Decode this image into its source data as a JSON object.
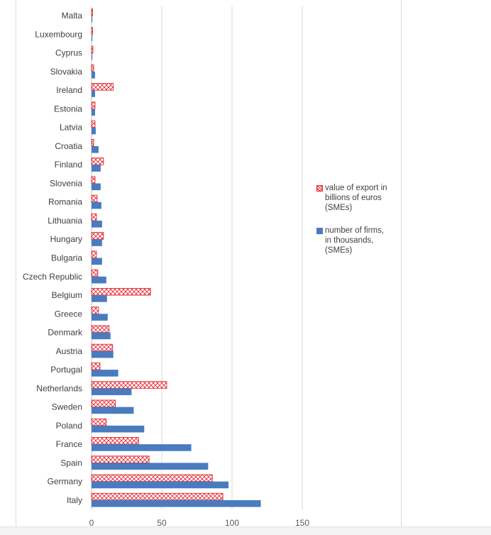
{
  "chart_data": {
    "type": "bar",
    "orientation": "horizontal",
    "categories": [
      "Italy",
      "Germany",
      "Spain",
      "France",
      "Poland",
      "Sweden",
      "Netherlands",
      "Portugal",
      "Austria",
      "Denmark",
      "Greece",
      "Belgium",
      "Czech Republic",
      "Bulgaria",
      "Hungary",
      "Lithuania",
      "Romania",
      "Slovenia",
      "Finland",
      "Croatia",
      "Latvia",
      "Estonia",
      "Ireland",
      "Slovakia",
      "Cyprus",
      "Luxembourg",
      "Malta"
    ],
    "series": [
      {
        "name": "value of export in billions of euros (SMEs)",
        "legend_lines": [
          "value of export in",
          "billions of euros",
          "(SMEs)"
        ],
        "color": "#e2262e",
        "style": "crosshatch",
        "values": [
          93.5,
          86,
          41,
          33.5,
          10.5,
          17,
          53.5,
          6,
          15,
          12.5,
          5,
          42,
          4.5,
          3.5,
          8.5,
          3.5,
          4,
          2.5,
          8.5,
          1.5,
          2.5,
          2.5,
          15.5,
          1.5,
          1,
          0.5,
          0.5
        ]
      },
      {
        "name": "number of firms, in thousands, (SMEs)",
        "legend_lines": [
          "number of firms,",
          "in thousands,",
          "(SMEs)"
        ],
        "color": "#4a7bbf",
        "style": "solid",
        "values": [
          120.5,
          97.5,
          83,
          71,
          37.5,
          30,
          28.5,
          19,
          15.5,
          13.5,
          11.5,
          11,
          10.5,
          7.5,
          7.5,
          7.5,
          7,
          6.5,
          6.5,
          5,
          3,
          2.5,
          2.5,
          2.5,
          0.5,
          0.5,
          0.3
        ]
      }
    ],
    "xlim": [
      0,
      150
    ],
    "xticks": [
      0,
      50,
      100,
      150
    ],
    "xlabel": "",
    "ylabel": "",
    "title": "",
    "grid": "vertical",
    "legend_position": "right"
  }
}
